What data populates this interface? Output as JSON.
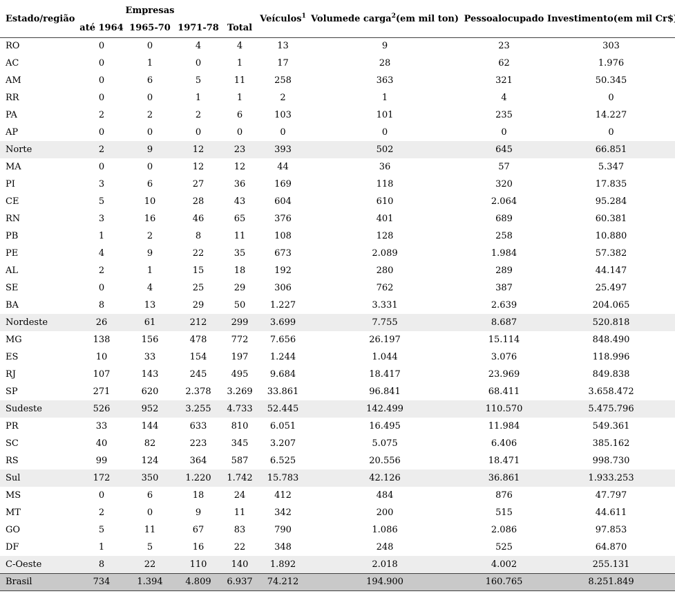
{
  "chart_data": {
    "type": "table",
    "columns": {
      "estado_regiao": "Estado/região",
      "empresas": "Empresas",
      "ate_1964": "até 1964",
      "col_1965_70": "1965-70",
      "col_1971_78": "1971-78",
      "total": "Total",
      "veiculos": "Veículos",
      "veiculos_note": "1",
      "volume_carga": "Volumede carga",
      "volume_carga_note": "2",
      "volume_carga_unit": "(em mil ton)",
      "pessoal_ocupado": "Pessoalocupado",
      "investimento": "Investimento(em mil Cr$)"
    },
    "column_order": [
      "Estado/região",
      "Empresas até 1964",
      "Empresas 1965-70",
      "Empresas 1971-78",
      "Empresas Total",
      "Veículos",
      "Volume de carga (em mil ton)",
      "Pessoal ocupado",
      "Investimento (em mil Cr$)"
    ],
    "rows": [
      {
        "label": "RO",
        "type": "state",
        "values": [
          "0",
          "0",
          "4",
          "4",
          "13",
          "9",
          "23",
          "303"
        ]
      },
      {
        "label": "AC",
        "type": "state",
        "values": [
          "0",
          "1",
          "0",
          "1",
          "17",
          "28",
          "62",
          "1.976"
        ]
      },
      {
        "label": "AM",
        "type": "state",
        "values": [
          "0",
          "6",
          "5",
          "11",
          "258",
          "363",
          "321",
          "50.345"
        ]
      },
      {
        "label": "RR",
        "type": "state",
        "values": [
          "0",
          "0",
          "1",
          "1",
          "2",
          "1",
          "4",
          "0"
        ]
      },
      {
        "label": "PA",
        "type": "state",
        "values": [
          "2",
          "2",
          "2",
          "6",
          "103",
          "101",
          "235",
          "14.227"
        ]
      },
      {
        "label": "AP",
        "type": "state",
        "values": [
          "0",
          "0",
          "0",
          "0",
          "0",
          "0",
          "0",
          "0"
        ]
      },
      {
        "label": "Norte",
        "type": "region",
        "values": [
          "2",
          "9",
          "12",
          "23",
          "393",
          "502",
          "645",
          "66.851"
        ]
      },
      {
        "label": "MA",
        "type": "state",
        "values": [
          "0",
          "0",
          "12",
          "12",
          "44",
          "36",
          "57",
          "5.347"
        ]
      },
      {
        "label": "PI",
        "type": "state",
        "values": [
          "3",
          "6",
          "27",
          "36",
          "169",
          "118",
          "320",
          "17.835"
        ]
      },
      {
        "label": "CE",
        "type": "state",
        "values": [
          "5",
          "10",
          "28",
          "43",
          "604",
          "610",
          "2.064",
          "95.284"
        ]
      },
      {
        "label": "RN",
        "type": "state",
        "values": [
          "3",
          "16",
          "46",
          "65",
          "376",
          "401",
          "689",
          "60.381"
        ]
      },
      {
        "label": "PB",
        "type": "state",
        "values": [
          "1",
          "2",
          "8",
          "11",
          "108",
          "128",
          "258",
          "10.880"
        ]
      },
      {
        "label": "PE",
        "type": "state",
        "values": [
          "4",
          "9",
          "22",
          "35",
          "673",
          "2.089",
          "1.984",
          "57.382"
        ]
      },
      {
        "label": "AL",
        "type": "state",
        "values": [
          "2",
          "1",
          "15",
          "18",
          "192",
          "280",
          "289",
          "44.147"
        ]
      },
      {
        "label": "SE",
        "type": "state",
        "values": [
          "0",
          "4",
          "25",
          "29",
          "306",
          "762",
          "387",
          "25.497"
        ]
      },
      {
        "label": "BA",
        "type": "state",
        "values": [
          "8",
          "13",
          "29",
          "50",
          "1.227",
          "3.331",
          "2.639",
          "204.065"
        ]
      },
      {
        "label": "Nordeste",
        "type": "region",
        "values": [
          "26",
          "61",
          "212",
          "299",
          "3.699",
          "7.755",
          "8.687",
          "520.818"
        ]
      },
      {
        "label": "MG",
        "type": "state",
        "values": [
          "138",
          "156",
          "478",
          "772",
          "7.656",
          "26.197",
          "15.114",
          "848.490"
        ]
      },
      {
        "label": "ES",
        "type": "state",
        "values": [
          "10",
          "33",
          "154",
          "197",
          "1.244",
          "1.044",
          "3.076",
          "118.996"
        ]
      },
      {
        "label": "RJ",
        "type": "state",
        "values": [
          "107",
          "143",
          "245",
          "495",
          "9.684",
          "18.417",
          "23.969",
          "849.838"
        ]
      },
      {
        "label": "SP",
        "type": "state",
        "values": [
          "271",
          "620",
          "2.378",
          "3.269",
          "33.861",
          "96.841",
          "68.411",
          "3.658.472"
        ]
      },
      {
        "label": "Sudeste",
        "type": "region",
        "values": [
          "526",
          "952",
          "3.255",
          "4.733",
          "52.445",
          "142.499",
          "110.570",
          "5.475.796"
        ]
      },
      {
        "label": "PR",
        "type": "state",
        "values": [
          "33",
          "144",
          "633",
          "810",
          "6.051",
          "16.495",
          "11.984",
          "549.361"
        ]
      },
      {
        "label": "SC",
        "type": "state",
        "values": [
          "40",
          "82",
          "223",
          "345",
          "3.207",
          "5.075",
          "6.406",
          "385.162"
        ]
      },
      {
        "label": "RS",
        "type": "state",
        "values": [
          "99",
          "124",
          "364",
          "587",
          "6.525",
          "20.556",
          "18.471",
          "998.730"
        ]
      },
      {
        "label": "Sul",
        "type": "region",
        "values": [
          "172",
          "350",
          "1.220",
          "1.742",
          "15.783",
          "42.126",
          "36.861",
          "1.933.253"
        ]
      },
      {
        "label": "MS",
        "type": "state",
        "values": [
          "0",
          "6",
          "18",
          "24",
          "412",
          "484",
          "876",
          "47.797"
        ]
      },
      {
        "label": "MT",
        "type": "state",
        "values": [
          "2",
          "0",
          "9",
          "11",
          "342",
          "200",
          "515",
          "44.611"
        ]
      },
      {
        "label": "GO",
        "type": "state",
        "values": [
          "5",
          "11",
          "67",
          "83",
          "790",
          "1.086",
          "2.086",
          "97.853"
        ]
      },
      {
        "label": "DF",
        "type": "state",
        "values": [
          "1",
          "5",
          "16",
          "22",
          "348",
          "248",
          "525",
          "64.870"
        ]
      },
      {
        "label": "C-Oeste",
        "type": "region",
        "values": [
          "8",
          "22",
          "110",
          "140",
          "1.892",
          "2.018",
          "4.002",
          "255.131"
        ]
      },
      {
        "label": "Brasil",
        "type": "total",
        "values": [
          "734",
          "1.394",
          "4.809",
          "6.937",
          "74.212",
          "194.900",
          "160.765",
          "8.251.849"
        ]
      }
    ]
  }
}
